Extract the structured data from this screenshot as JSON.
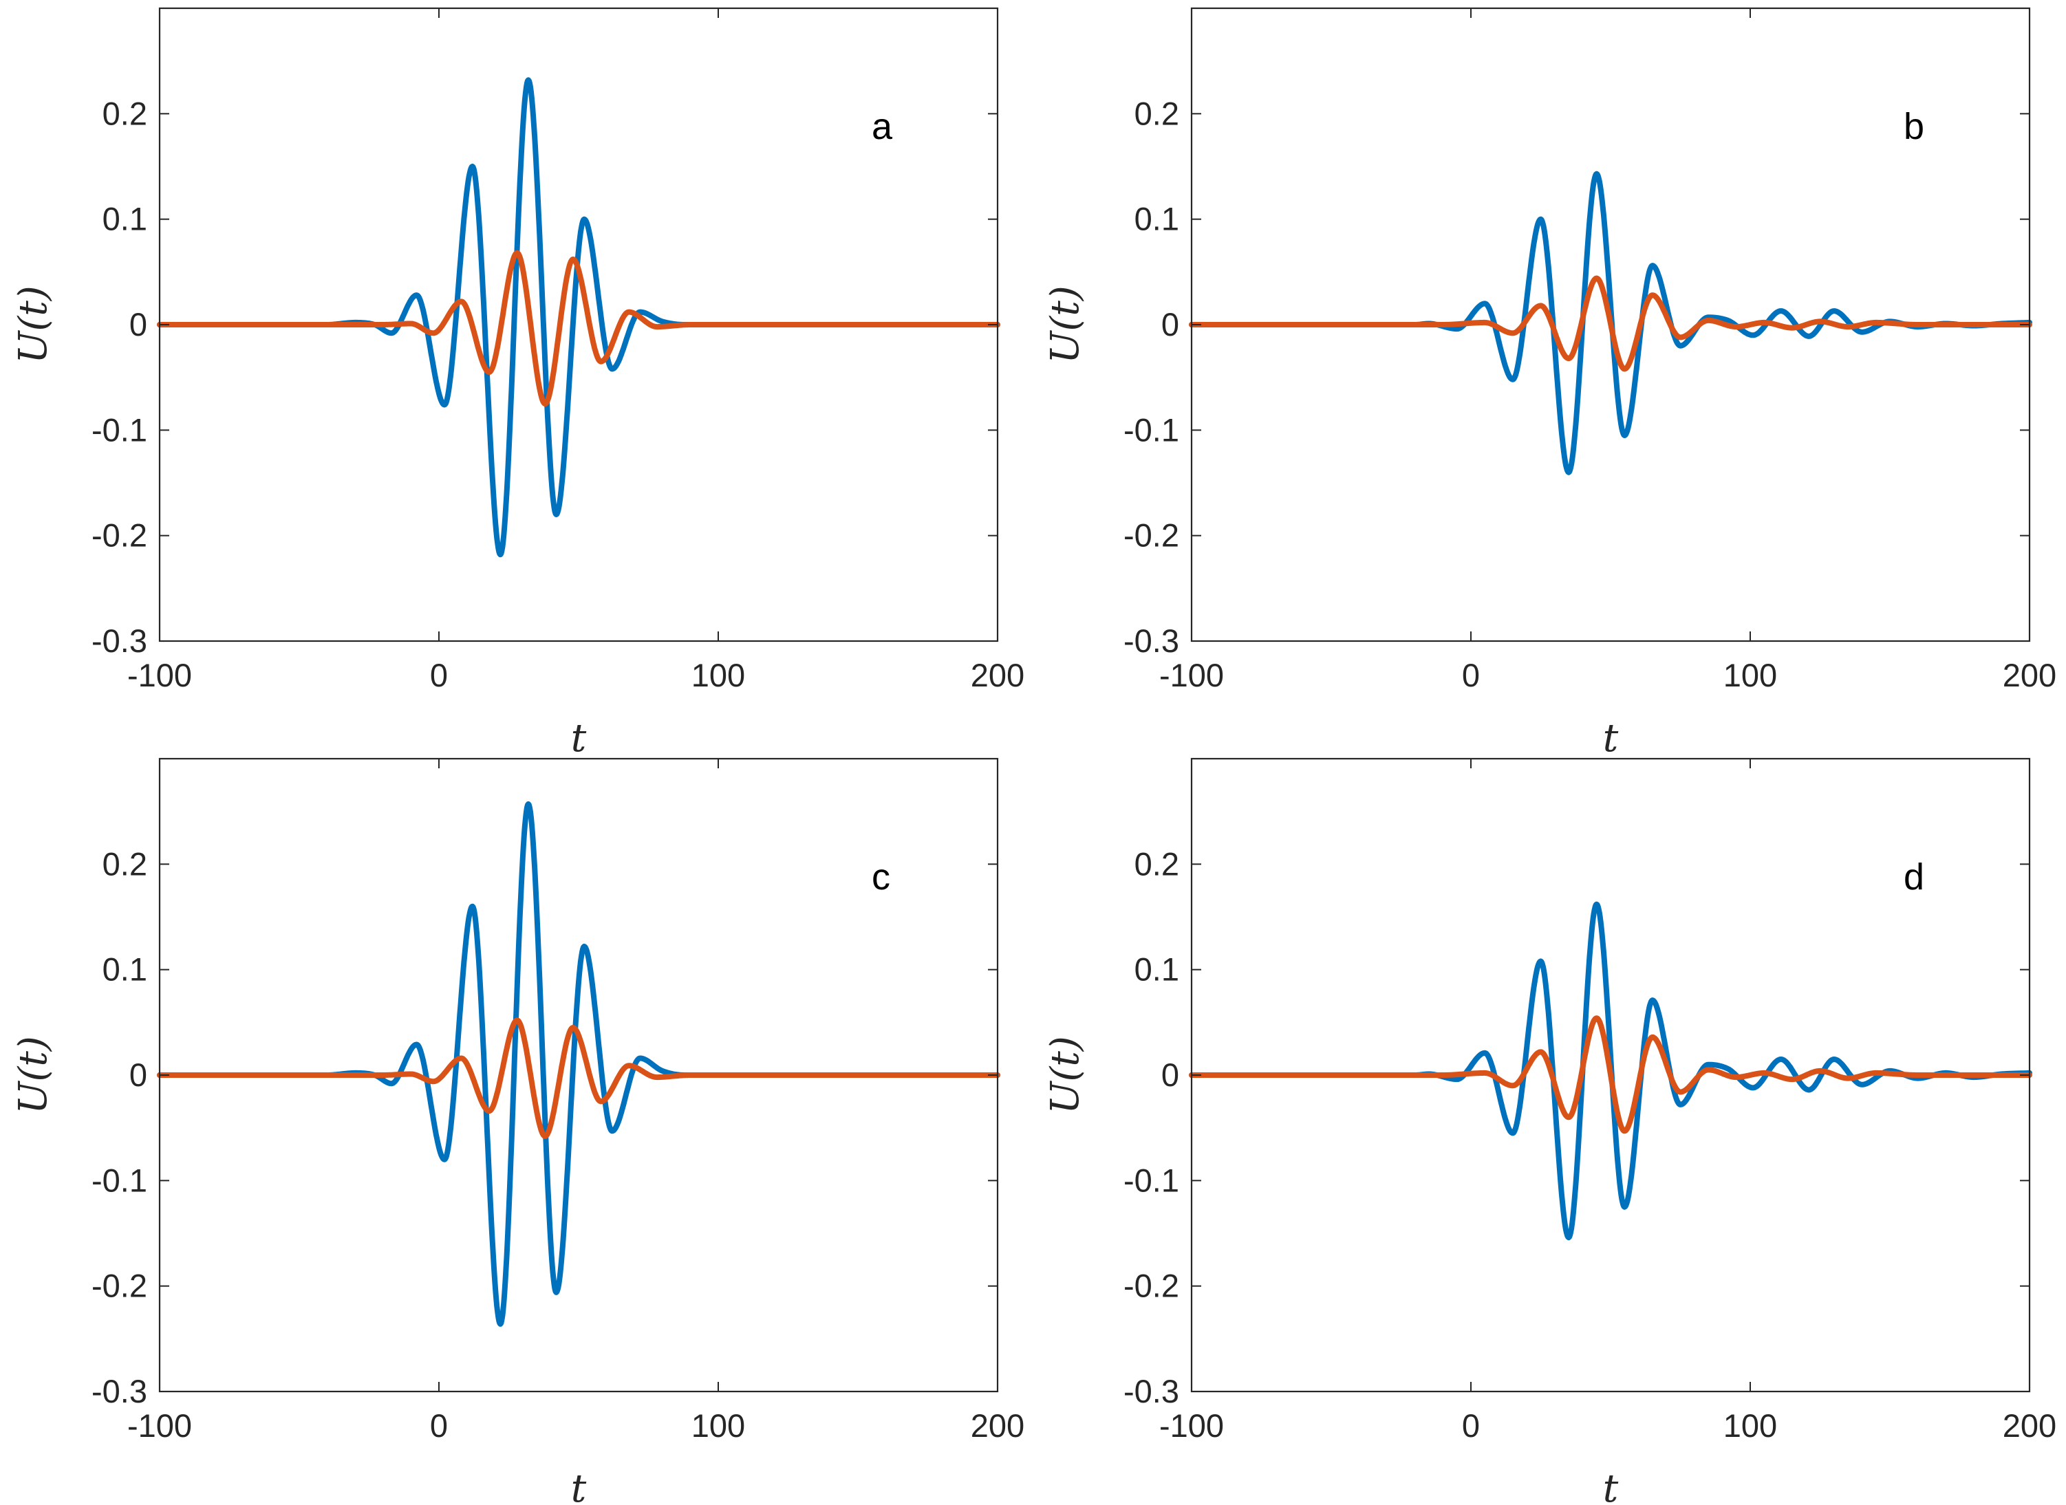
{
  "chart_data": [
    {
      "panel": "a",
      "type": "line",
      "xlabel": "t",
      "ylabel": "U(t)",
      "xlim": [
        -100,
        200
      ],
      "ylim": [
        -0.3,
        0.3
      ],
      "xticks": [
        -100,
        0,
        100,
        200
      ],
      "xtick_labels": [
        "-100",
        "0",
        "100",
        "200"
      ],
      "yticks": [
        -0.3,
        -0.2,
        -0.1,
        0,
        0.1,
        0.2
      ],
      "ytick_labels": [
        "-0.3",
        "-0.2",
        "-0.1",
        "0",
        "0.1",
        "0.2"
      ],
      "grid": false,
      "series": [
        {
          "color": "#0072BD",
          "x": [
            -100,
            -40,
            -30,
            -23,
            -17,
            -8,
            2,
            12,
            22,
            32,
            42,
            52,
            62,
            72,
            80,
            88,
            100,
            200
          ],
          "y": [
            0,
            0,
            0.002,
            0,
            -0.008,
            0.028,
            -0.076,
            0.15,
            -0.218,
            0.232,
            -0.18,
            0.1,
            -0.042,
            0.012,
            0.003,
            0,
            0,
            0
          ]
        },
        {
          "color": "#D95319",
          "x": [
            -100,
            -20,
            -10,
            -2,
            8,
            18,
            28,
            38,
            48,
            58,
            68,
            78,
            90,
            200
          ],
          "y": [
            0,
            0,
            0.001,
            -0.008,
            0.022,
            -0.045,
            0.068,
            -0.075,
            0.062,
            -0.035,
            0.012,
            -0.002,
            0,
            0
          ]
        }
      ]
    },
    {
      "panel": "b",
      "type": "line",
      "xlabel": "t",
      "ylabel": "U(t)",
      "xlim": [
        -100,
        200
      ],
      "ylim": [
        -0.3,
        0.3
      ],
      "xticks": [
        -100,
        0,
        100,
        200
      ],
      "xtick_labels": [
        "-100",
        "0",
        "100",
        "200"
      ],
      "yticks": [
        -0.3,
        -0.2,
        -0.1,
        0,
        0.1,
        0.2
      ],
      "ytick_labels": [
        "-0.3",
        "-0.2",
        "-0.1",
        "0",
        "0.1",
        "0.2"
      ],
      "grid": false,
      "series": [
        {
          "color": "#0072BD",
          "x": [
            -100,
            -20,
            -15,
            -5,
            5,
            15,
            25,
            35,
            45,
            55,
            65,
            75,
            85,
            92,
            101,
            111,
            121,
            130,
            140,
            150,
            160,
            170,
            180,
            190,
            200
          ],
          "y": [
            0,
            0,
            0.001,
            -0.004,
            0.02,
            -0.052,
            0.1,
            -0.14,
            0.143,
            -0.105,
            0.056,
            -0.02,
            0.007,
            0.004,
            -0.01,
            0.013,
            -0.011,
            0.013,
            -0.007,
            0.003,
            -0.002,
            0.001,
            -0.001,
            0.001,
            0.002
          ]
        },
        {
          "color": "#D95319",
          "x": [
            -100,
            -10,
            5,
            15,
            25,
            35,
            45,
            55,
            65,
            75,
            85,
            95,
            105,
            115,
            125,
            135,
            145,
            160,
            200
          ],
          "y": [
            0,
            0,
            0.002,
            -0.008,
            0.018,
            -0.032,
            0.044,
            -0.042,
            0.028,
            -0.012,
            0.004,
            -0.002,
            0.002,
            -0.003,
            0.003,
            -0.002,
            0.002,
            0,
            0
          ]
        }
      ]
    },
    {
      "panel": "c",
      "type": "line",
      "xlabel": "t",
      "ylabel": "U(t)",
      "xlim": [
        -100,
        200
      ],
      "ylim": [
        -0.3,
        0.3
      ],
      "xticks": [
        -100,
        0,
        100,
        200
      ],
      "xtick_labels": [
        "-100",
        "0",
        "100",
        "200"
      ],
      "yticks": [
        -0.3,
        -0.2,
        -0.1,
        0,
        0.1,
        0.2
      ],
      "ytick_labels": [
        "-0.3",
        "-0.2",
        "-0.1",
        "0",
        "0.1",
        "0.2"
      ],
      "grid": false,
      "series": [
        {
          "color": "#0072BD",
          "x": [
            -100,
            -40,
            -30,
            -23,
            -17,
            -8,
            2,
            12,
            22,
            32,
            42,
            52,
            62,
            72,
            80,
            88,
            100,
            200
          ],
          "y": [
            0,
            0,
            0.002,
            0,
            -0.008,
            0.029,
            -0.08,
            0.16,
            -0.236,
            0.257,
            -0.206,
            0.122,
            -0.053,
            0.016,
            0.004,
            0,
            0,
            0
          ]
        },
        {
          "color": "#D95319",
          "x": [
            -100,
            -20,
            -10,
            -2,
            8,
            18,
            28,
            38,
            48,
            58,
            68,
            78,
            90,
            200
          ],
          "y": [
            0,
            0,
            0.001,
            -0.006,
            0.016,
            -0.034,
            0.052,
            -0.058,
            0.045,
            -0.025,
            0.009,
            -0.002,
            0,
            0
          ]
        }
      ]
    },
    {
      "panel": "d",
      "type": "line",
      "xlabel": "t",
      "ylabel": "U(t)",
      "xlim": [
        -100,
        200
      ],
      "ylim": [
        -0.3,
        0.3
      ],
      "xticks": [
        -100,
        0,
        100,
        200
      ],
      "xtick_labels": [
        "-100",
        "0",
        "100",
        "200"
      ],
      "yticks": [
        -0.3,
        -0.2,
        -0.1,
        0,
        0.1,
        0.2
      ],
      "ytick_labels": [
        "-0.3",
        "-0.2",
        "-0.1",
        "0",
        "0.1",
        "0.2"
      ],
      "grid": false,
      "series": [
        {
          "color": "#0072BD",
          "x": [
            -100,
            -20,
            -15,
            -5,
            5,
            15,
            25,
            35,
            45,
            55,
            65,
            75,
            85,
            92,
            101,
            111,
            121,
            130,
            140,
            150,
            160,
            170,
            180,
            190,
            200
          ],
          "y": [
            0,
            0,
            0.001,
            -0.004,
            0.021,
            -0.055,
            0.108,
            -0.154,
            0.162,
            -0.125,
            0.071,
            -0.028,
            0.01,
            0.006,
            -0.012,
            0.015,
            -0.014,
            0.015,
            -0.009,
            0.004,
            -0.003,
            0.002,
            -0.002,
            0.001,
            0.002
          ]
        },
        {
          "color": "#D95319",
          "x": [
            -100,
            -10,
            5,
            15,
            25,
            35,
            45,
            55,
            65,
            75,
            85,
            95,
            105,
            115,
            125,
            135,
            145,
            160,
            200
          ],
          "y": [
            0,
            0,
            0.002,
            -0.01,
            0.022,
            -0.04,
            0.054,
            -0.053,
            0.036,
            -0.016,
            0.005,
            -0.002,
            0.002,
            -0.004,
            0.004,
            -0.003,
            0.002,
            0,
            0
          ]
        }
      ]
    }
  ]
}
